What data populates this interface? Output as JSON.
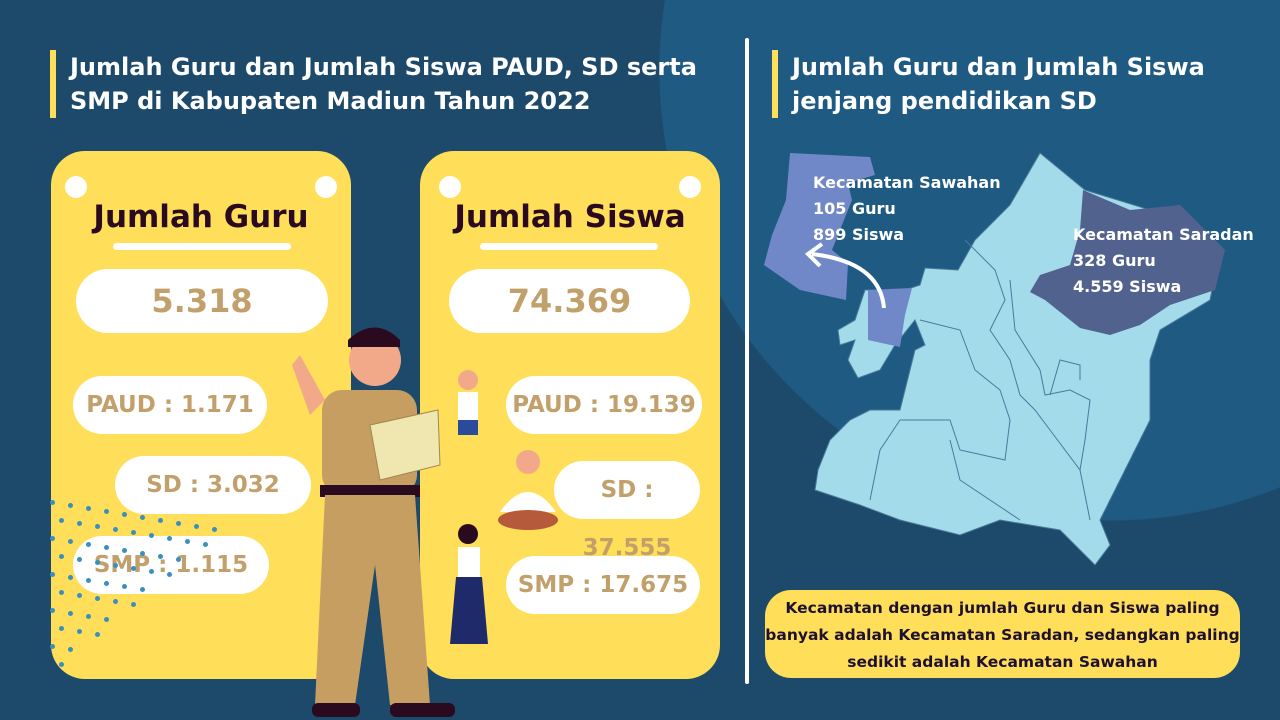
{
  "left": {
    "title": "Jumlah Guru dan Jumlah Siswa PAUD, SD serta SMP di Kabupaten Madiun Tahun 2022",
    "guru": {
      "heading": "Jumlah Guru",
      "total": "5.318",
      "paud": "PAUD : 1.171",
      "sd": "SD : 3.032",
      "smp": "SMP : 1.115"
    },
    "siswa": {
      "heading": "Jumlah Siswa",
      "total": "74.369",
      "paud": "PAUD : 19.139",
      "sd": "SD : 37.555",
      "smp": "SMP : 17.675"
    }
  },
  "right": {
    "title": "Jumlah Guru dan Jumlah Siswa jenjang pendidikan SD",
    "sawahan": {
      "name": "Kecamatan Sawahan",
      "guru": "105 Guru",
      "siswa": "899 Siswa"
    },
    "saradan": {
      "name": "Kecamatan Saradan",
      "guru": "328 Guru",
      "siswa": "4.559 Siswa"
    },
    "note": "Kecamatan dengan jumlah Guru dan Siswa paling banyak adalah Kecamatan Saradan, sedangkan paling sedikit adalah Kecamatan Sawahan"
  },
  "colors": {
    "background": "#1d4a6b",
    "accent": "#ffde59",
    "map": "#a3dbeb",
    "sawahan": "#7088c8",
    "saradan": "#52628f",
    "number": "#c2a06b"
  }
}
